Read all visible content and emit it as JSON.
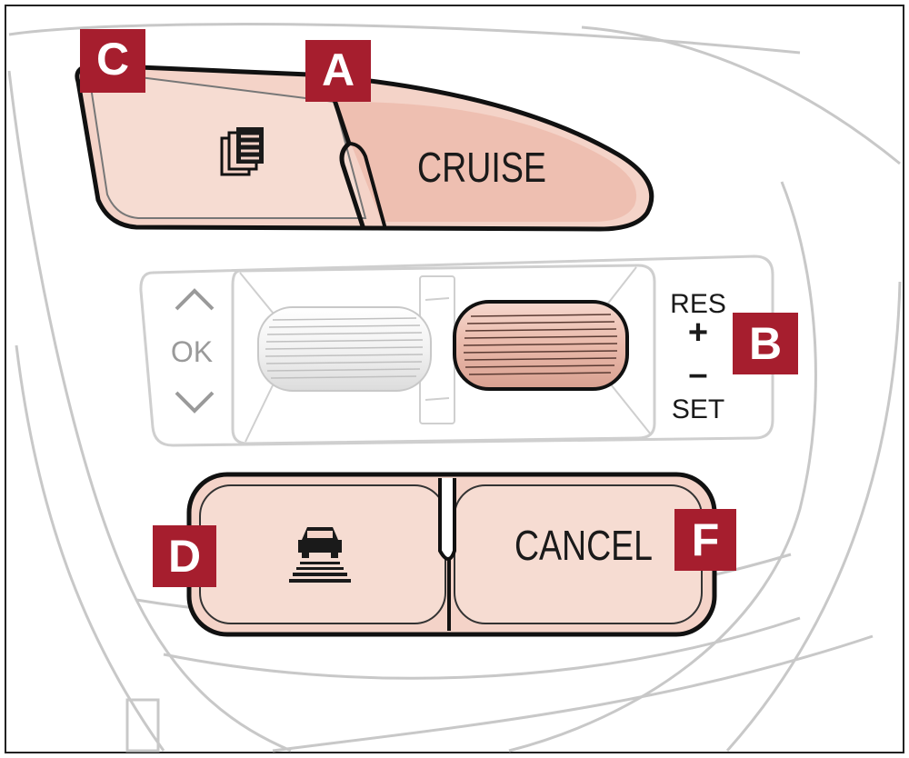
{
  "buttons": {
    "cruise_label": "CRUISE",
    "cancel_label": "CANCEL",
    "mode_icon": "document-stack-icon",
    "distance_icon": "vehicle-distance-icon"
  },
  "toggle": {
    "res_label": "RES",
    "plus_label": "+",
    "minus_label": "–",
    "set_label": "SET"
  },
  "nav": {
    "ok_label": "OK",
    "up_icon": "chevron-up-icon",
    "down_icon": "chevron-down-icon"
  },
  "callouts": {
    "a": "A",
    "b": "B",
    "c": "C",
    "d": "D",
    "f": "F"
  },
  "colors": {
    "button_fill": "#f4d3c8",
    "callout_bg": "#a61e2e",
    "outline": "#111111",
    "housing_line": "#c8c8c8",
    "wheel_light": "#f0f0f0",
    "wheel_dark": "#e6b4a6"
  }
}
